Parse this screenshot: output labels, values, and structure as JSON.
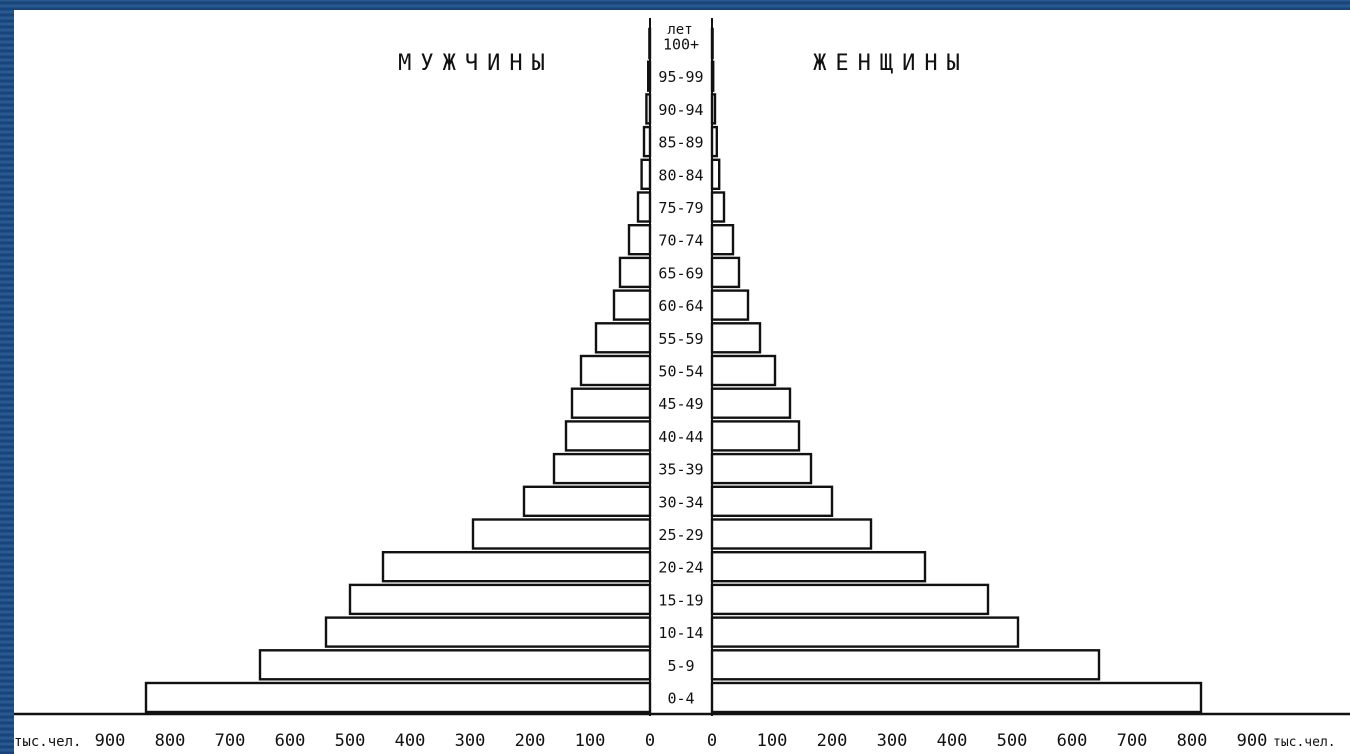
{
  "chart_data": {
    "type": "bar",
    "subtype": "population-pyramid",
    "title_left": "МУЖЧИНЫ",
    "title_right": "ЖЕНЩИНЫ",
    "age_header": "лет",
    "unit_left": "тыс.чел.",
    "unit_right": "тыс.чел.",
    "categories": [
      "0-4",
      "5-9",
      "10-14",
      "15-19",
      "20-24",
      "25-29",
      "30-34",
      "35-39",
      "40-44",
      "45-49",
      "50-54",
      "55-59",
      "60-64",
      "65-69",
      "70-74",
      "75-79",
      "80-84",
      "85-89",
      "90-94",
      "95-99",
      "100+"
    ],
    "series": [
      {
        "name": "МУЖЧИНЫ",
        "side": "left",
        "values": [
          840,
          650,
          540,
          500,
          445,
          295,
          210,
          160,
          140,
          130,
          115,
          90,
          60,
          50,
          35,
          20,
          14,
          10,
          6,
          3,
          1
        ]
      },
      {
        "name": "ЖЕНЩИНЫ",
        "side": "right",
        "values": [
          815,
          645,
          510,
          460,
          355,
          265,
          200,
          165,
          145,
          130,
          105,
          80,
          60,
          45,
          35,
          20,
          12,
          8,
          5,
          2,
          1
        ]
      }
    ],
    "x_ticks_left": [
      "900",
      "800",
      "700",
      "600",
      "500",
      "400",
      "300",
      "200",
      "100",
      "0"
    ],
    "x_ticks_right": [
      "0",
      "100",
      "200",
      "300",
      "400",
      "500",
      "600",
      "700",
      "800",
      "900"
    ],
    "xlim": [
      0,
      900
    ],
    "grid": false,
    "colors": {
      "bar_fill": "#ffffff",
      "bar_stroke": "#111111",
      "background": "#ffffff",
      "frame": "#1f4f86"
    }
  }
}
